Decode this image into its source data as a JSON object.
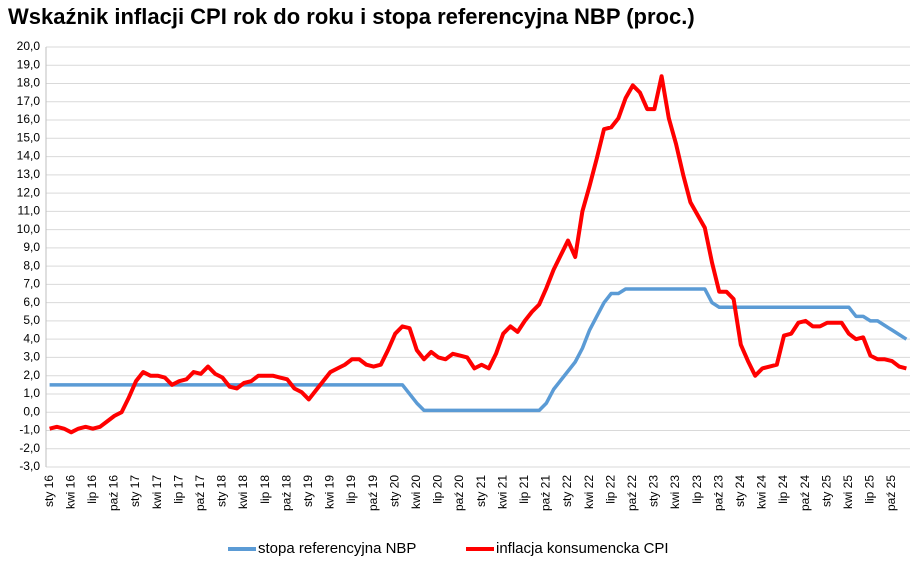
{
  "chart_data": {
    "type": "line",
    "title": "Wskaźnik inflacji CPI rok do roku i stopa referencyjna NBP (proc.)",
    "categories": [
      "sty 16",
      null,
      null,
      "kwi 16",
      null,
      null,
      "lip 16",
      null,
      null,
      "paź 16",
      null,
      null,
      "sty 17",
      null,
      null,
      "kwi 17",
      null,
      null,
      "lip 17",
      null,
      null,
      "paź 17",
      null,
      null,
      "sty 18",
      null,
      null,
      "kwi 18",
      null,
      null,
      "lip 18",
      null,
      null,
      "paź 18",
      null,
      null,
      "sty 19",
      null,
      null,
      "kwi 19",
      null,
      null,
      "lip 19",
      null,
      null,
      "paź 19",
      null,
      null,
      "sty 20",
      null,
      null,
      "kwi 20",
      null,
      null,
      "lip 20",
      null,
      null,
      "paź 20",
      null,
      null,
      "sty 21",
      null,
      null,
      "kwi 21",
      null,
      null,
      "lip 21",
      null,
      null,
      "paź 21",
      null,
      null,
      "sty 22",
      null,
      null,
      "kwi 22",
      null,
      null,
      "lip 22",
      null,
      null,
      "paź 22",
      null,
      null,
      "sty 23",
      null,
      null,
      "kwi 23",
      null,
      null,
      "lip 23",
      null,
      null,
      "paź 23",
      null,
      null,
      "sty 24",
      null,
      null,
      "kwi 24",
      null,
      null,
      "lip 24",
      null,
      null,
      "paź 24",
      null,
      null,
      "sty 25",
      null,
      null,
      "kwi 25",
      null,
      null,
      "lip 25",
      null,
      null,
      "paź 25",
      null,
      null
    ],
    "series": [
      {
        "name": "stopa referencyjna NBP",
        "color": "#5b9bd5",
        "values": [
          1.5,
          1.5,
          1.5,
          1.5,
          1.5,
          1.5,
          1.5,
          1.5,
          1.5,
          1.5,
          1.5,
          1.5,
          1.5,
          1.5,
          1.5,
          1.5,
          1.5,
          1.5,
          1.5,
          1.5,
          1.5,
          1.5,
          1.5,
          1.5,
          1.5,
          1.5,
          1.5,
          1.5,
          1.5,
          1.5,
          1.5,
          1.5,
          1.5,
          1.5,
          1.5,
          1.5,
          1.5,
          1.5,
          1.5,
          1.5,
          1.5,
          1.5,
          1.5,
          1.5,
          1.5,
          1.5,
          1.5,
          1.5,
          1.5,
          1.5,
          1.0,
          0.5,
          0.1,
          0.1,
          0.1,
          0.1,
          0.1,
          0.1,
          0.1,
          0.1,
          0.1,
          0.1,
          0.1,
          0.1,
          0.1,
          0.1,
          0.1,
          0.1,
          0.1,
          0.5,
          1.25,
          1.75,
          2.25,
          2.75,
          3.5,
          4.5,
          5.25,
          6.0,
          6.5,
          6.5,
          6.75,
          6.75,
          6.75,
          6.75,
          6.75,
          6.75,
          6.75,
          6.75,
          6.75,
          6.75,
          6.75,
          6.75,
          6.0,
          5.75,
          5.75,
          5.75,
          5.75,
          5.75,
          5.75,
          5.75,
          5.75,
          5.75,
          5.75,
          5.75,
          5.75,
          5.75,
          5.75,
          5.75,
          5.75,
          5.75,
          5.75,
          5.75,
          5.25,
          5.25,
          5.0,
          5.0,
          4.75,
          4.5,
          4.25,
          4.0
        ]
      },
      {
        "name": "inflacja konsumencka CPI",
        "color": "#ff0000",
        "values": [
          -0.9,
          -0.8,
          -0.9,
          -1.1,
          -0.9,
          -0.8,
          -0.9,
          -0.8,
          -0.5,
          -0.2,
          0.0,
          0.8,
          1.7,
          2.2,
          2.0,
          2.0,
          1.9,
          1.5,
          1.7,
          1.8,
          2.2,
          2.1,
          2.5,
          2.1,
          1.9,
          1.4,
          1.3,
          1.6,
          1.7,
          2.0,
          2.0,
          2.0,
          1.9,
          1.8,
          1.3,
          1.1,
          0.7,
          1.2,
          1.7,
          2.2,
          2.4,
          2.6,
          2.9,
          2.9,
          2.6,
          2.5,
          2.6,
          3.4,
          4.3,
          4.7,
          4.6,
          3.4,
          2.9,
          3.3,
          3.0,
          2.9,
          3.2,
          3.1,
          3.0,
          2.4,
          2.6,
          2.4,
          3.2,
          4.3,
          4.7,
          4.4,
          5.0,
          5.5,
          5.9,
          6.8,
          7.8,
          8.6,
          9.4,
          8.5,
          11.0,
          12.4,
          13.9,
          15.5,
          15.6,
          16.1,
          17.2,
          17.9,
          17.5,
          16.6,
          16.6,
          18.4,
          16.1,
          14.7,
          13.0,
          11.5,
          10.8,
          10.1,
          8.2,
          6.6,
          6.6,
          6.2,
          3.7,
          2.8,
          2.0,
          2.4,
          2.5,
          2.6,
          4.2,
          4.3,
          4.9,
          5.0,
          4.7,
          4.7,
          4.9,
          4.9,
          4.9,
          4.3,
          4.0,
          4.1,
          3.1,
          2.9,
          2.9,
          2.8,
          2.5,
          2.4
        ]
      }
    ],
    "ylim": [
      -3,
      20
    ],
    "yticks": [
      {
        "value": -3,
        "label": "-3,0"
      },
      {
        "value": -2,
        "label": "-2,0"
      },
      {
        "value": -1,
        "label": "-1,0"
      },
      {
        "value": 0,
        "label": "0,0"
      },
      {
        "value": 1,
        "label": "1,0"
      },
      {
        "value": 2,
        "label": "2,0"
      },
      {
        "value": 3,
        "label": "3,0"
      },
      {
        "value": 4,
        "label": "4,0"
      },
      {
        "value": 5,
        "label": "5,0"
      },
      {
        "value": 6,
        "label": "6,0"
      },
      {
        "value": 7,
        "label": "7,0"
      },
      {
        "value": 8,
        "label": "8,0"
      },
      {
        "value": 9,
        "label": "9,0"
      },
      {
        "value": 10,
        "label": "10,0"
      },
      {
        "value": 11,
        "label": "11,0"
      },
      {
        "value": 12,
        "label": "12,0"
      },
      {
        "value": 13,
        "label": "13,0"
      },
      {
        "value": 14,
        "label": "14,0"
      },
      {
        "value": 15,
        "label": "15,0"
      },
      {
        "value": 16,
        "label": "16,0"
      },
      {
        "value": 17,
        "label": "17,0"
      },
      {
        "value": 18,
        "label": "18,0"
      },
      {
        "value": 19,
        "label": "19,0"
      },
      {
        "value": 20,
        "label": "20,0"
      }
    ],
    "grid": true,
    "legend": "bottom"
  }
}
